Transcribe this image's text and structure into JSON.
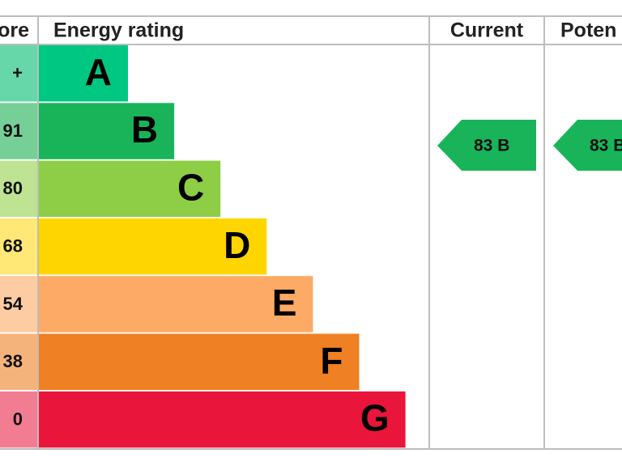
{
  "header": {
    "score": "ore",
    "rating": "Energy rating",
    "current": "Current",
    "potential": "Poten"
  },
  "bands": [
    {
      "score": "+",
      "letter": "A",
      "color": "#00c781",
      "score_color": "#66d7a8"
    },
    {
      "score": "91",
      "letter": "B",
      "color": "#19b459",
      "score_color": "#75cf96"
    },
    {
      "score": "80",
      "letter": "C",
      "color": "#8dce46",
      "score_color": "#bde393"
    },
    {
      "score": "68",
      "letter": "D",
      "color": "#ffd500",
      "score_color": "#ffe875"
    },
    {
      "score": "54",
      "letter": "E",
      "color": "#fcaa65",
      "score_color": "#fdcca3"
    },
    {
      "score": "38",
      "letter": "F",
      "color": "#ef8023",
      "score_color": "#f5b37c"
    },
    {
      "score": "0",
      "letter": "G",
      "color": "#e9153b",
      "score_color": "#f27d93"
    }
  ],
  "current": {
    "label": "83 B",
    "color": "#19b459"
  },
  "potential": {
    "label": "83 B",
    "color": "#19b459"
  }
}
